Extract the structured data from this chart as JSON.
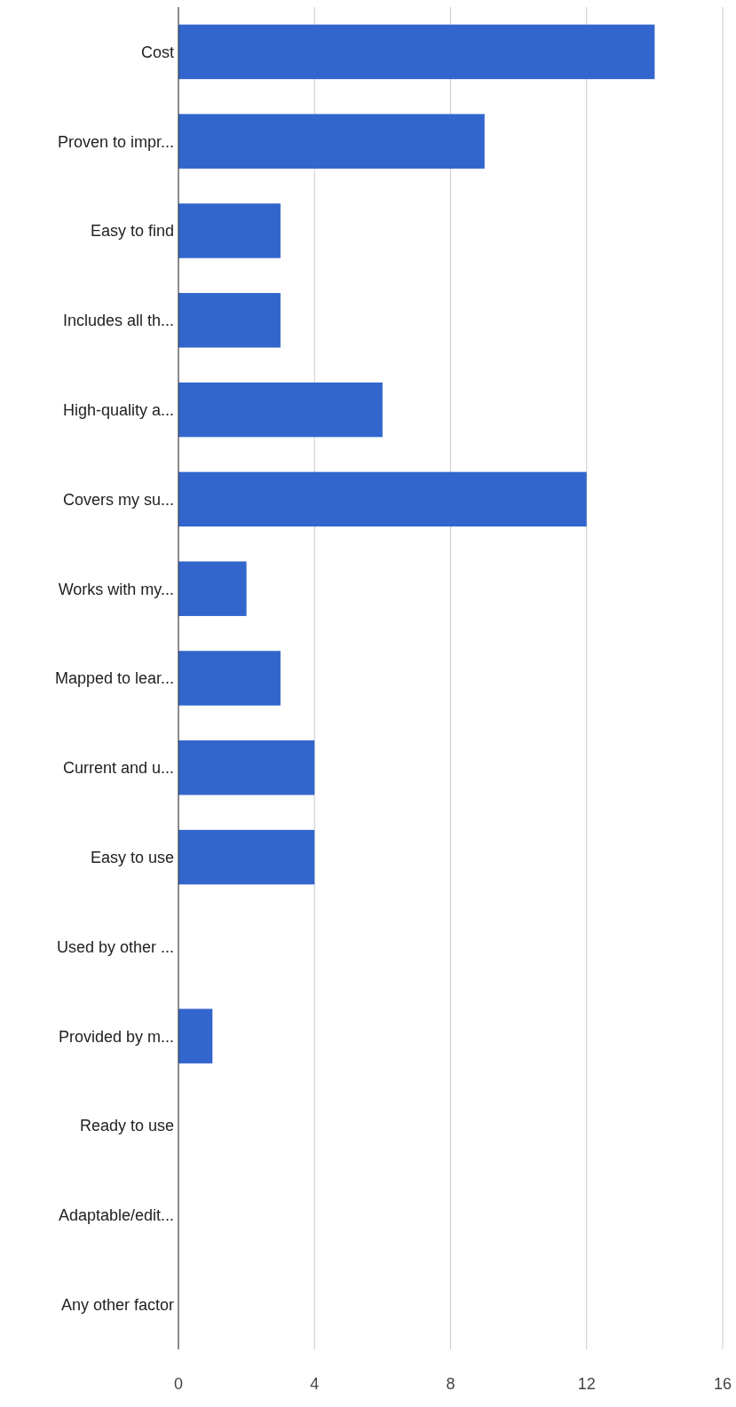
{
  "chart_data": {
    "type": "bar",
    "orientation": "horizontal",
    "categories": [
      "Cost",
      "Proven to impr...",
      "Easy to find",
      "Includes all th...",
      "High-quality a...",
      "Covers my su...",
      "Works with my...",
      "Mapped to lear...",
      "Current and u...",
      "Easy to use",
      "Used by other ...",
      "Provided by m...",
      "Ready to use",
      "Adaptable/edit...",
      "Any other factor"
    ],
    "values": [
      14,
      9,
      3,
      3,
      6,
      12,
      2,
      3,
      4,
      4,
      0,
      1,
      0,
      0,
      0
    ],
    "color": "#3366cc",
    "xlim": [
      0,
      16
    ],
    "xticks": [
      0,
      4,
      8,
      12,
      16
    ],
    "grid": "x"
  }
}
